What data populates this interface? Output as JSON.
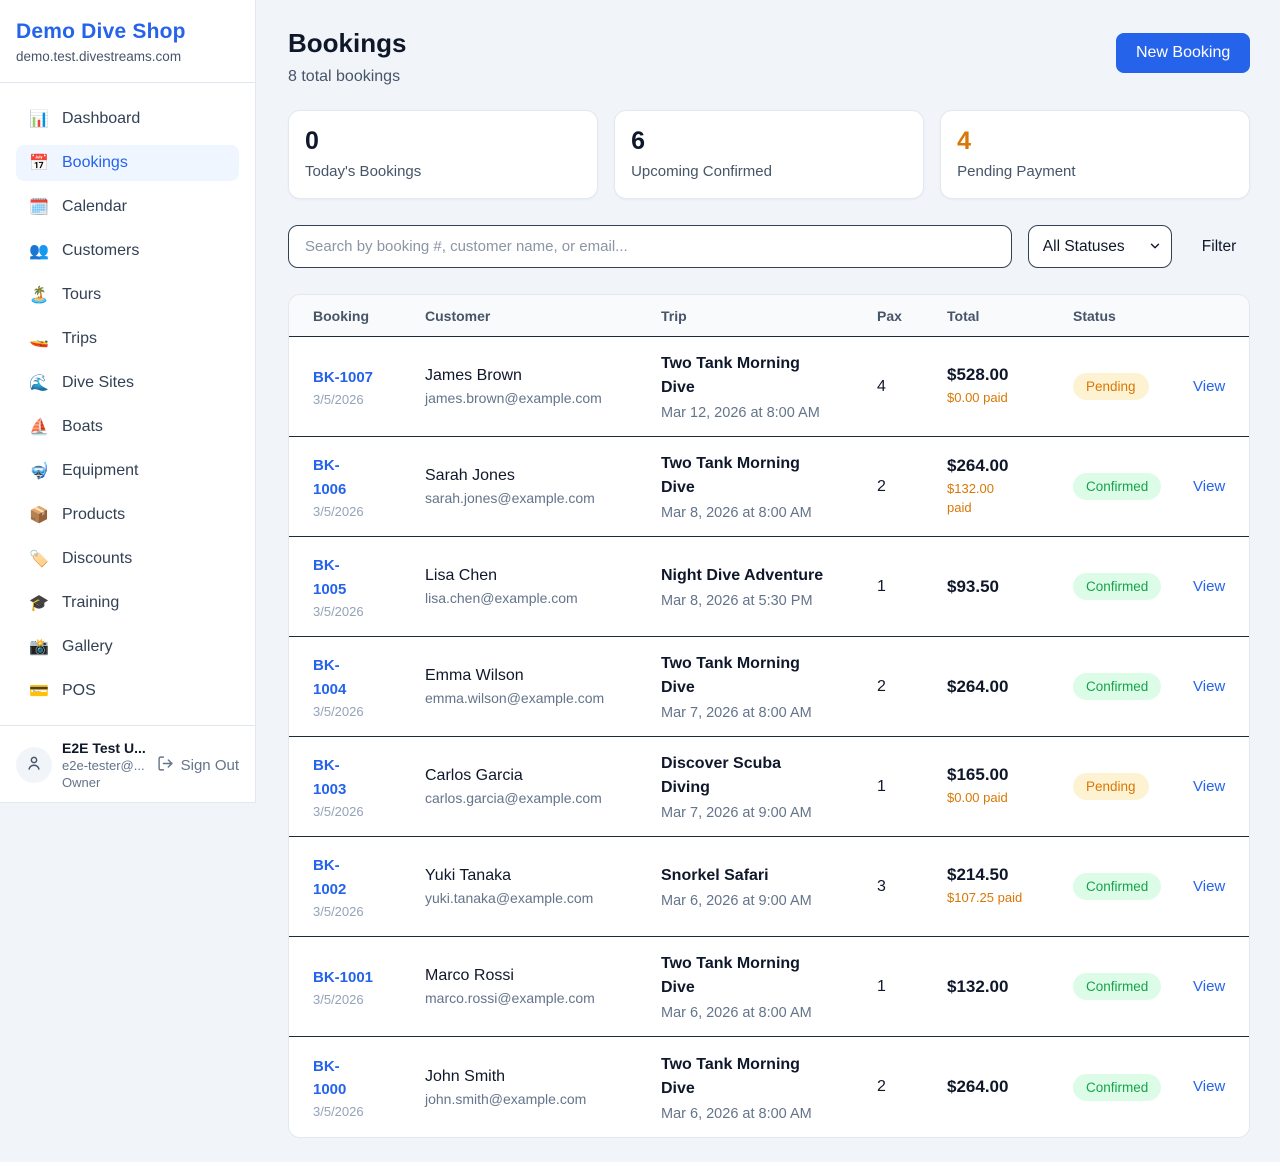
{
  "colors": {
    "accent_blue": "#2563eb",
    "pending_text": "#d97706",
    "pending_bg": "#fdf3d3",
    "confirmed_text": "#16a34a",
    "confirmed_bg": "#dcfce7"
  },
  "sidebar": {
    "brand": {
      "name": "Demo Dive Shop",
      "domain": "demo.test.divestreams.com"
    },
    "items": [
      {
        "icon": "📊",
        "label": "Dashboard",
        "active": false
      },
      {
        "icon": "📅",
        "label": "Bookings",
        "active": true
      },
      {
        "icon": "🗓️",
        "label": "Calendar",
        "active": false
      },
      {
        "icon": "👥",
        "label": "Customers",
        "active": false
      },
      {
        "icon": "🏝️",
        "label": "Tours",
        "active": false
      },
      {
        "icon": "🚤",
        "label": "Trips",
        "active": false
      },
      {
        "icon": "🌊",
        "label": "Dive Sites",
        "active": false
      },
      {
        "icon": "⛵",
        "label": "Boats",
        "active": false
      },
      {
        "icon": "🤿",
        "label": "Equipment",
        "active": false
      },
      {
        "icon": "📦",
        "label": "Products",
        "active": false
      },
      {
        "icon": "🏷️",
        "label": "Discounts",
        "active": false
      },
      {
        "icon": "🎓",
        "label": "Training",
        "active": false
      },
      {
        "icon": "📸",
        "label": "Gallery",
        "active": false
      },
      {
        "icon": "💳",
        "label": "POS",
        "active": false
      }
    ],
    "user": {
      "name": "E2E Test U...",
      "email": "e2e-tester@...",
      "role": "Owner",
      "sign_out_label": "Sign Out"
    }
  },
  "header": {
    "title": "Bookings",
    "subtitle": "8 total bookings",
    "new_booking_label": "New Booking"
  },
  "stats": [
    {
      "value": "0",
      "label": "Today's Bookings",
      "color": "dark"
    },
    {
      "value": "6",
      "label": "Upcoming Confirmed",
      "color": "dark"
    },
    {
      "value": "4",
      "label": "Pending Payment",
      "color": "orange"
    }
  ],
  "filters": {
    "search_placeholder": "Search by booking #, customer name, or email...",
    "status_selected": "All Statuses",
    "filter_label": "Filter"
  },
  "table": {
    "columns": [
      "Booking",
      "Customer",
      "Trip",
      "Pax",
      "Total",
      "Status",
      ""
    ],
    "rows": [
      {
        "booking_id": "BK-1007",
        "booking_date": "3/5/2026",
        "customer_name": "James Brown",
        "customer_email": "james.brown@example.com",
        "trip_name": "Two Tank Morning\nDive",
        "trip_datetime": "Mar 12, 2026 at 8:00 AM",
        "pax": "4",
        "total": "$528.00",
        "paid": "$0.00 paid",
        "status": "Pending",
        "action": "View"
      },
      {
        "booking_id": "BK-\n1006",
        "booking_date": "3/5/2026",
        "customer_name": "Sarah Jones",
        "customer_email": "sarah.jones@example.com",
        "trip_name": "Two Tank Morning\nDive",
        "trip_datetime": "Mar 8, 2026 at 8:00 AM",
        "pax": "2",
        "total": "$264.00",
        "paid": "$132.00\npaid",
        "status": "Confirmed",
        "action": "View"
      },
      {
        "booking_id": "BK-\n1005",
        "booking_date": "3/5/2026",
        "customer_name": "Lisa Chen",
        "customer_email": "lisa.chen@example.com",
        "trip_name": "Night Dive Adventure",
        "trip_datetime": "Mar 8, 2026 at 5:30 PM",
        "pax": "1",
        "total": "$93.50",
        "paid": null,
        "status": "Confirmed",
        "action": "View"
      },
      {
        "booking_id": "BK-\n1004",
        "booking_date": "3/5/2026",
        "customer_name": "Emma Wilson",
        "customer_email": "emma.wilson@example.com",
        "trip_name": "Two Tank Morning\nDive",
        "trip_datetime": "Mar 7, 2026 at 8:00 AM",
        "pax": "2",
        "total": "$264.00",
        "paid": null,
        "status": "Confirmed",
        "action": "View"
      },
      {
        "booking_id": "BK-\n1003",
        "booking_date": "3/5/2026",
        "customer_name": "Carlos Garcia",
        "customer_email": "carlos.garcia@example.com",
        "trip_name": "Discover Scuba\nDiving",
        "trip_datetime": "Mar 7, 2026 at 9:00 AM",
        "pax": "1",
        "total": "$165.00",
        "paid": "$0.00 paid",
        "status": "Pending",
        "action": "View"
      },
      {
        "booking_id": "BK-\n1002",
        "booking_date": "3/5/2026",
        "customer_name": "Yuki Tanaka",
        "customer_email": "yuki.tanaka@example.com",
        "trip_name": "Snorkel Safari",
        "trip_datetime": "Mar 6, 2026 at 9:00 AM",
        "pax": "3",
        "total": "$214.50",
        "paid": "$107.25 paid",
        "status": "Confirmed",
        "action": "View"
      },
      {
        "booking_id": "BK-1001",
        "booking_date": "3/5/2026",
        "customer_name": "Marco Rossi",
        "customer_email": "marco.rossi@example.com",
        "trip_name": "Two Tank Morning\nDive",
        "trip_datetime": "Mar 6, 2026 at 8:00 AM",
        "pax": "1",
        "total": "$132.00",
        "paid": null,
        "status": "Confirmed",
        "action": "View"
      },
      {
        "booking_id": "BK-\n1000",
        "booking_date": "3/5/2026",
        "customer_name": "John Smith",
        "customer_email": "john.smith@example.com",
        "trip_name": "Two Tank Morning\nDive",
        "trip_datetime": "Mar 6, 2026 at 8:00 AM",
        "pax": "2",
        "total": "$264.00",
        "paid": null,
        "status": "Confirmed",
        "action": "View"
      }
    ]
  }
}
